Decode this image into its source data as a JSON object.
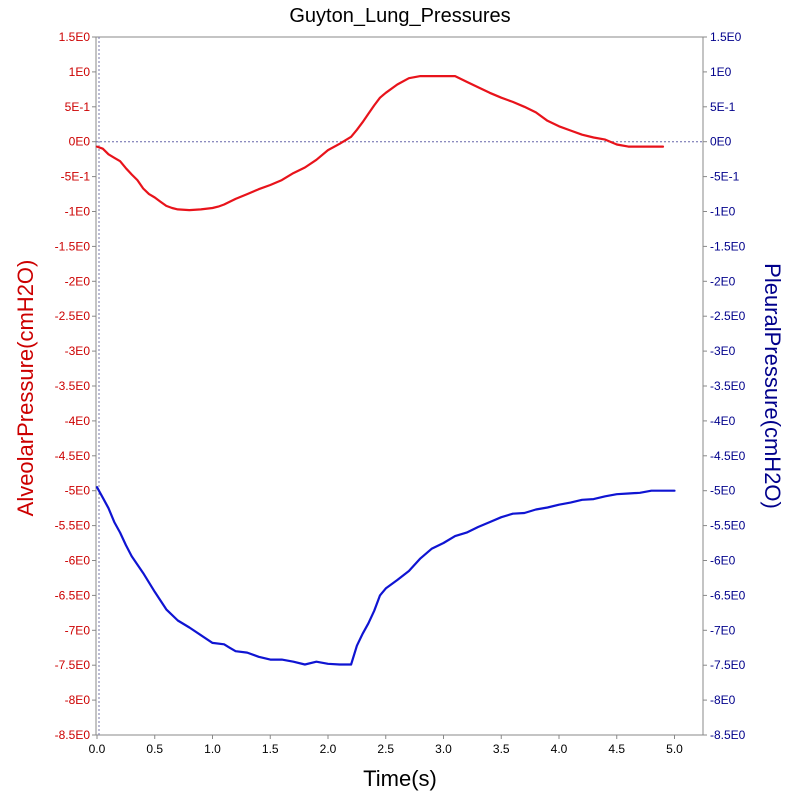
{
  "chart_data": {
    "type": "line",
    "title": "Guyton_Lung_Pressures",
    "xlabel": "Time(s)",
    "ylabel_left": "AlveolarPressure(cmH2O)",
    "ylabel_right": "PleuralPressure(cmH2O)",
    "xlim": [
      0,
      5.2
    ],
    "ylim": [
      -8.5,
      1.5
    ],
    "x_ticks": [
      0,
      0.5,
      1,
      1.5,
      2,
      2.5,
      3,
      3.5,
      4,
      4.5,
      5
    ],
    "x_tick_labels": [
      "0.0",
      "0.5",
      "1.0",
      "1.5",
      "2.0",
      "2.5",
      "3.0",
      "3.5",
      "4.0",
      "4.5",
      "5.0"
    ],
    "y_ticks": [
      1.5,
      1,
      0.5,
      0,
      -0.5,
      -1,
      -1.5,
      -2,
      -2.5,
      -3,
      -3.5,
      -4,
      -4.5,
      -5,
      -5.5,
      -6,
      -6.5,
      -7,
      -7.5,
      -8,
      -8.5
    ],
    "y_tick_labels": [
      "1.5E0",
      "1E0",
      "5E-1",
      "0E0",
      "-5E-1",
      "-1E0",
      "-1.5E0",
      "-2E0",
      "-2.5E0",
      "-3E0",
      "-3.5E0",
      "-4E0",
      "-4.5E0",
      "-5E0",
      "-5.5E0",
      "-6E0",
      "-6.5E0",
      "-7E0",
      "-7.5E0",
      "-8E0",
      "-8.5E0"
    ],
    "y_tick_labels_right": [
      "1.5E0",
      "1E0",
      "5E-1",
      "0E0",
      "-5E-1",
      "-1E0",
      "-1.5E0",
      "-2E0",
      "-2.5E0",
      "-3E0",
      "-3.5E0",
      "-4E0",
      "-4.5E0",
      "-5E0",
      "-5.5E0",
      "-6E0",
      "-6.5E0",
      "-7E0",
      "-7.5E0",
      "-8E0",
      "-8.5E0"
    ],
    "reference_line_y": 0,
    "grid": false,
    "colors": {
      "alveolar": "#e8131b",
      "pleural": "#0f14d2",
      "left_axis": "#cc0000",
      "right_axis": "#00008b",
      "reference": "#6666aa",
      "frame": "#888888"
    },
    "series": [
      {
        "key": "alveolar",
        "axis": "left",
        "x": [
          0.0,
          0.05,
          0.1,
          0.15,
          0.2,
          0.25,
          0.3,
          0.35,
          0.4,
          0.45,
          0.5,
          0.55,
          0.6,
          0.65,
          0.7,
          0.8,
          0.9,
          1.0,
          1.05,
          1.1,
          1.2,
          1.3,
          1.4,
          1.5,
          1.6,
          1.7,
          1.8,
          1.9,
          2.0,
          2.1,
          2.2,
          2.25,
          2.3,
          2.35,
          2.4,
          2.45,
          2.5,
          2.6,
          2.7,
          2.8,
          2.9,
          3.0,
          3.1,
          3.2,
          3.3,
          3.4,
          3.5,
          3.6,
          3.7,
          3.8,
          3.9,
          4.0,
          4.1,
          4.2,
          4.3,
          4.4,
          4.5,
          4.6,
          4.7,
          4.8,
          4.9
        ],
        "y": [
          -0.07,
          -0.1,
          -0.18,
          -0.23,
          -0.28,
          -0.38,
          -0.47,
          -0.55,
          -0.67,
          -0.75,
          -0.8,
          -0.86,
          -0.92,
          -0.95,
          -0.97,
          -0.98,
          -0.97,
          -0.95,
          -0.93,
          -0.9,
          -0.82,
          -0.75,
          -0.68,
          -0.62,
          -0.55,
          -0.45,
          -0.37,
          -0.26,
          -0.12,
          -0.03,
          0.07,
          0.17,
          0.28,
          0.4,
          0.52,
          0.63,
          0.7,
          0.82,
          0.91,
          0.94,
          0.94,
          0.94,
          0.94,
          0.86,
          0.78,
          0.7,
          0.63,
          0.57,
          0.5,
          0.42,
          0.3,
          0.22,
          0.16,
          0.1,
          0.06,
          0.03,
          -0.04,
          -0.07,
          -0.07,
          -0.07,
          -0.07
        ]
      },
      {
        "key": "pleural",
        "axis": "right",
        "x": [
          0.0,
          0.05,
          0.1,
          0.15,
          0.2,
          0.25,
          0.3,
          0.4,
          0.5,
          0.6,
          0.7,
          0.8,
          0.9,
          1.0,
          1.1,
          1.15,
          1.2,
          1.3,
          1.4,
          1.5,
          1.6,
          1.7,
          1.8,
          1.9,
          2.0,
          2.1,
          2.2,
          2.25,
          2.3,
          2.35,
          2.4,
          2.45,
          2.5,
          2.6,
          2.7,
          2.8,
          2.9,
          3.0,
          3.1,
          3.2,
          3.3,
          3.4,
          3.5,
          3.6,
          3.7,
          3.8,
          3.9,
          4.0,
          4.1,
          4.2,
          4.3,
          4.4,
          4.5,
          4.6,
          4.7,
          4.8,
          4.9,
          5.0
        ],
        "y": [
          -4.95,
          -5.1,
          -5.25,
          -5.45,
          -5.6,
          -5.78,
          -5.94,
          -6.18,
          -6.45,
          -6.7,
          -6.86,
          -6.96,
          -7.07,
          -7.18,
          -7.2,
          -7.25,
          -7.3,
          -7.32,
          -7.38,
          -7.42,
          -7.42,
          -7.45,
          -7.49,
          -7.45,
          -7.48,
          -7.49,
          -7.49,
          -7.22,
          -7.05,
          -6.9,
          -6.72,
          -6.5,
          -6.4,
          -6.28,
          -6.15,
          -5.97,
          -5.83,
          -5.75,
          -5.65,
          -5.6,
          -5.52,
          -5.45,
          -5.38,
          -5.33,
          -5.32,
          -5.27,
          -5.24,
          -5.2,
          -5.17,
          -5.13,
          -5.12,
          -5.08,
          -5.05,
          -5.04,
          -5.03,
          -5.0,
          -5.0,
          -5.0
        ]
      }
    ]
  }
}
